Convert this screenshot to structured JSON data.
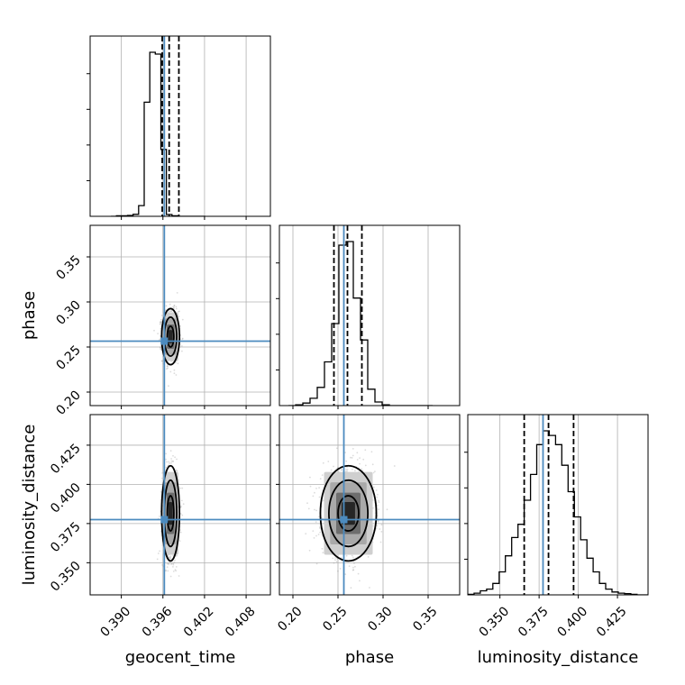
{
  "chart_data": {
    "type": "corner",
    "parameters": [
      "geocent_time",
      "phase",
      "luminosity_distance"
    ],
    "truth": {
      "geocent_time": 0.3962,
      "phase": 0.2565,
      "luminosity_distance": 0.3775
    },
    "colors": {
      "truth": "#4c8bbf",
      "contour": "#000000",
      "points": "#9a9a9a",
      "grid": "#b0b0b0",
      "quantile": "#000000"
    },
    "grid": true,
    "ranges": {
      "geocent_time": [
        0.3855,
        0.4115
      ],
      "phase": [
        0.185,
        0.385
      ],
      "luminosity_distance": [
        0.3295,
        0.4445
      ]
    },
    "ticks": {
      "geocent_time": [
        0.39,
        0.396,
        0.402,
        0.408
      ],
      "phase": [
        0.2,
        0.25,
        0.3,
        0.35
      ],
      "luminosity_distance": [
        0.35,
        0.375,
        0.4,
        0.425
      ]
    },
    "tick_labels": {
      "geocent_time": [
        "0.390",
        "0.396",
        "0.402",
        "0.408"
      ],
      "phase": [
        "0.20",
        "0.25",
        "0.30",
        "0.35"
      ],
      "luminosity_distance": [
        "0.350",
        "0.375",
        "0.400",
        "0.425"
      ]
    },
    "axis_labels": {
      "x": [
        "geocent_time",
        "phase",
        "luminosity_distance"
      ],
      "y": [
        "",
        "phase",
        "luminosity_distance"
      ]
    },
    "posterior": {
      "geocent_time": {
        "mean": 0.3971,
        "sd": 0.00056
      },
      "phase": {
        "mean": 0.2615,
        "sd": 0.0135
      },
      "luminosity_distance": {
        "mean": 0.3815,
        "sd": 0.0132
      }
    },
    "quantiles": {
      "geocent_time": [
        0.3959,
        0.3969,
        0.3983
      ],
      "phase": [
        0.2455,
        0.2605,
        0.2765
      ],
      "luminosity_distance": [
        0.3655,
        0.381,
        0.397
      ]
    },
    "histograms": {
      "geocent_time": {
        "edges": [
          0.3885,
          0.3893,
          0.3901,
          0.3909,
          0.3917,
          0.3925,
          0.3933,
          0.3941,
          0.3949,
          0.3957,
          0.3965,
          0.3973,
          0.3981,
          0.3989,
          0.3997,
          0.4005,
          0.4013,
          0.4021
        ],
        "counts": [
          0,
          3,
          3,
          5,
          11,
          60,
          640,
          920,
          910,
          375,
          10,
          3,
          0,
          0,
          0,
          0,
          0
        ]
      },
      "phase": {
        "edges": [
          0.195,
          0.203,
          0.211,
          0.219,
          0.227,
          0.235,
          0.243,
          0.251,
          0.259,
          0.267,
          0.275,
          0.283,
          0.291,
          0.299,
          0.307,
          0.315,
          0.323,
          0.331,
          0.339,
          0.347,
          0.355
        ],
        "counts": [
          0,
          2,
          7,
          20,
          50,
          120,
          225,
          440,
          450,
          295,
          180,
          45,
          10,
          2,
          0,
          0,
          0,
          0,
          0,
          0
        ]
      },
      "luminosity_distance": {
        "edges": [
          0.3295,
          0.3335,
          0.3375,
          0.3415,
          0.3455,
          0.3495,
          0.3535,
          0.3575,
          0.3615,
          0.3655,
          0.3695,
          0.3735,
          0.3775,
          0.3815,
          0.3855,
          0.3895,
          0.3935,
          0.3975,
          0.4015,
          0.4055,
          0.4095,
          0.4135,
          0.4175,
          0.4215,
          0.4255,
          0.4295,
          0.4335,
          0.4375,
          0.4445
        ],
        "counts": [
          1,
          3,
          7,
          10,
          20,
          40,
          68,
          100,
          123,
          165,
          210,
          262,
          286,
          278,
          262,
          226,
          180,
          136,
          96,
          64,
          40,
          20,
          10,
          5,
          3,
          2,
          1,
          0
        ]
      }
    }
  }
}
